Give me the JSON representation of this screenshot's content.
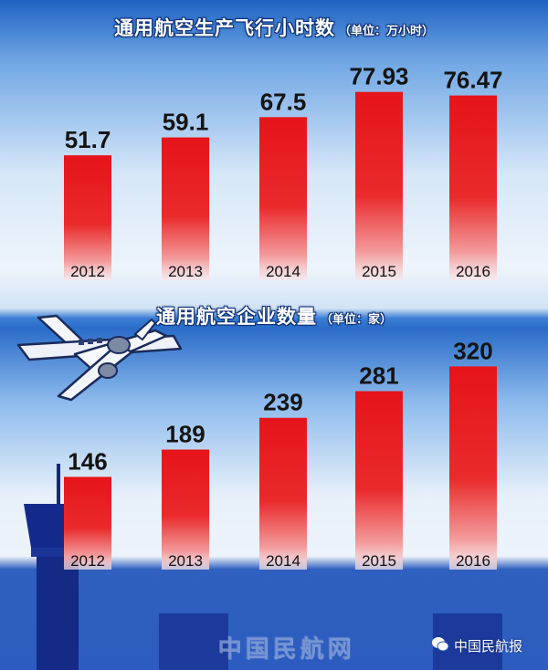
{
  "chart_data": [
    {
      "type": "bar",
      "title": "通用航空生产飞行小时数",
      "unit_label": "（单位：万小时）",
      "categories": [
        "2012",
        "2013",
        "2014",
        "2015",
        "2016"
      ],
      "values": [
        51.7,
        59.1,
        67.5,
        77.93,
        76.47
      ],
      "value_labels": [
        "51.7",
        "59.1",
        "67.5",
        "77.93",
        "76.47"
      ],
      "ylim": [
        0,
        85
      ],
      "grid": false,
      "bar_color": "#e8161b"
    },
    {
      "type": "bar",
      "title": "通用航空企业数量",
      "unit_label": "（单位：家）",
      "categories": [
        "2012",
        "2013",
        "2014",
        "2015",
        "2016"
      ],
      "values": [
        146,
        189,
        239,
        281,
        320
      ],
      "value_labels": [
        "146",
        "189",
        "239",
        "281",
        "320"
      ],
      "ylim": [
        0,
        345
      ],
      "grid": false,
      "bar_color": "#e8161b"
    }
  ],
  "watermarks": {
    "site": "中国民航网",
    "account": "中国民航报"
  },
  "decorations": {
    "airplane": "airplane-icon",
    "tower": "control-tower-icon",
    "wechat": "wechat-icon"
  }
}
